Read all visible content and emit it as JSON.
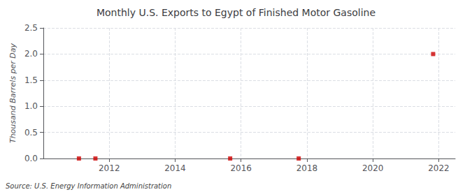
{
  "chart_data": {
    "type": "scatter",
    "title": "Monthly U.S. Exports to Egypt of Finished Motor Gasoline",
    "ylabel": "Thousand Barrels per Day",
    "annotations": [
      "Source: U.S. Energy Information Administration"
    ],
    "x": [
      2011.08,
      2011.58,
      2015.67,
      2017.75,
      2021.83
    ],
    "values": [
      0.0,
      0.0,
      0.0,
      0.0,
      2.0
    ],
    "color": "#cc0000",
    "marker": "square",
    "xlim": [
      2010.0,
      2022.5
    ],
    "xticks": [
      2012,
      2014,
      2016,
      2018,
      2020,
      2022
    ],
    "ylim": [
      0.0,
      2.5
    ],
    "yticks": [
      {
        "value": 0,
        "label": "0.0"
      },
      0.5,
      {
        "value": 1,
        "label": "1.0"
      },
      1.5,
      {
        "value": 2,
        "label": "2.0"
      },
      2.5
    ],
    "grid": true
  }
}
